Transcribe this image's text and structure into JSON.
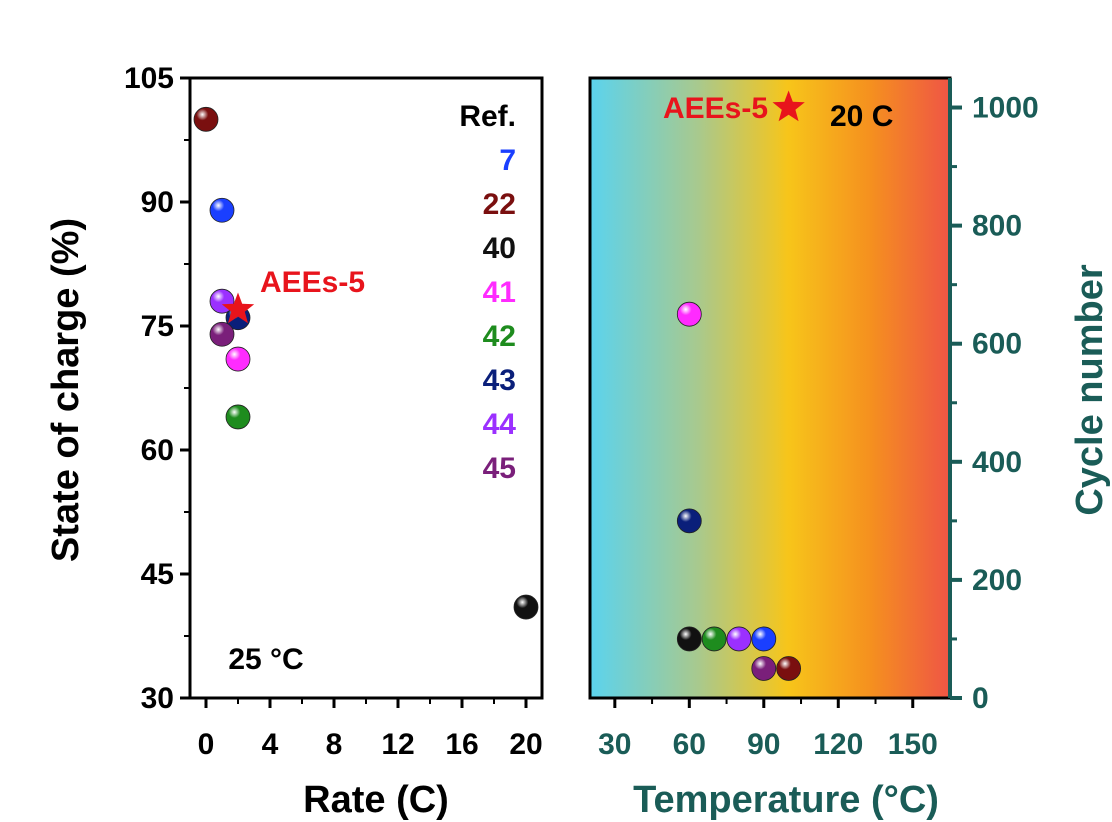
{
  "chart_data": [
    {
      "type": "scatter",
      "xlabel": "Rate (C)",
      "ylabel": "State of charge (%)",
      "xlim": [
        -1,
        21
      ],
      "ylim": [
        30,
        105
      ],
      "xticks": [
        0,
        4,
        8,
        12,
        16,
        20
      ],
      "yticks": [
        30,
        45,
        60,
        75,
        90,
        105
      ],
      "condition_label": "25 °C",
      "legend_title": "Ref.",
      "series": [
        {
          "name": "7",
          "color": "#1a3fff",
          "points": [
            {
              "x": 1,
              "y": 89
            }
          ]
        },
        {
          "name": "22",
          "color": "#7a0f0f",
          "points": [
            {
              "x": 0,
              "y": 100
            }
          ]
        },
        {
          "name": "40",
          "color": "#111111",
          "points": [
            {
              "x": 20,
              "y": 41
            }
          ]
        },
        {
          "name": "41",
          "color": "#ff2bff",
          "points": [
            {
              "x": 2,
              "y": 71
            }
          ]
        },
        {
          "name": "42",
          "color": "#1e8c1e",
          "points": [
            {
              "x": 2,
              "y": 64
            }
          ]
        },
        {
          "name": "43",
          "color": "#0a1f7a",
          "points": [
            {
              "x": 2,
              "y": 76
            }
          ]
        },
        {
          "name": "44",
          "color": "#9b30ff",
          "points": [
            {
              "x": 1,
              "y": 78
            }
          ]
        },
        {
          "name": "45",
          "color": "#7a1f7a",
          "points": [
            {
              "x": 1,
              "y": 74
            }
          ]
        }
      ],
      "highlight": {
        "name": "AEEs-5",
        "color": "#e8141c",
        "x": 2,
        "y": 77
      }
    },
    {
      "type": "scatter",
      "xlabel": "Temperature (°C)",
      "ylabel": "Cycle number",
      "xlim": [
        20,
        165
      ],
      "ylim": [
        0,
        1050
      ],
      "xticks": [
        30,
        60,
        90,
        120,
        150
      ],
      "yticks": [
        0,
        200,
        400,
        600,
        800,
        1000
      ],
      "background": "temperature gradient (cyan to red)",
      "points": [
        {
          "ref": "41",
          "x": 60,
          "y": 650,
          "color": "#ff2bff"
        },
        {
          "ref": "43",
          "x": 60,
          "y": 300,
          "color": "#0a1f7a"
        },
        {
          "ref": "40",
          "x": 60,
          "y": 100,
          "color": "#111111"
        },
        {
          "ref": "42",
          "x": 70,
          "y": 100,
          "color": "#1e8c1e"
        },
        {
          "ref": "44",
          "x": 80,
          "y": 100,
          "color": "#9b30ff"
        },
        {
          "ref": "7",
          "x": 90,
          "y": 100,
          "color": "#1a3fff"
        },
        {
          "ref": "45",
          "x": 90,
          "y": 50,
          "color": "#7a1f7a"
        },
        {
          "ref": "22",
          "x": 100,
          "y": 50,
          "color": "#7a0f0f"
        }
      ],
      "highlight": {
        "name": "AEEs-5",
        "color": "#e8141c",
        "x": 100,
        "y": 1000,
        "annotation": "20 C"
      }
    }
  ],
  "colors": {
    "right_axis": "#1a5c57",
    "gradient_stops": [
      "#5bd3ee",
      "#a8c98e",
      "#f2c41a",
      "#f5901f",
      "#ef5545"
    ]
  }
}
